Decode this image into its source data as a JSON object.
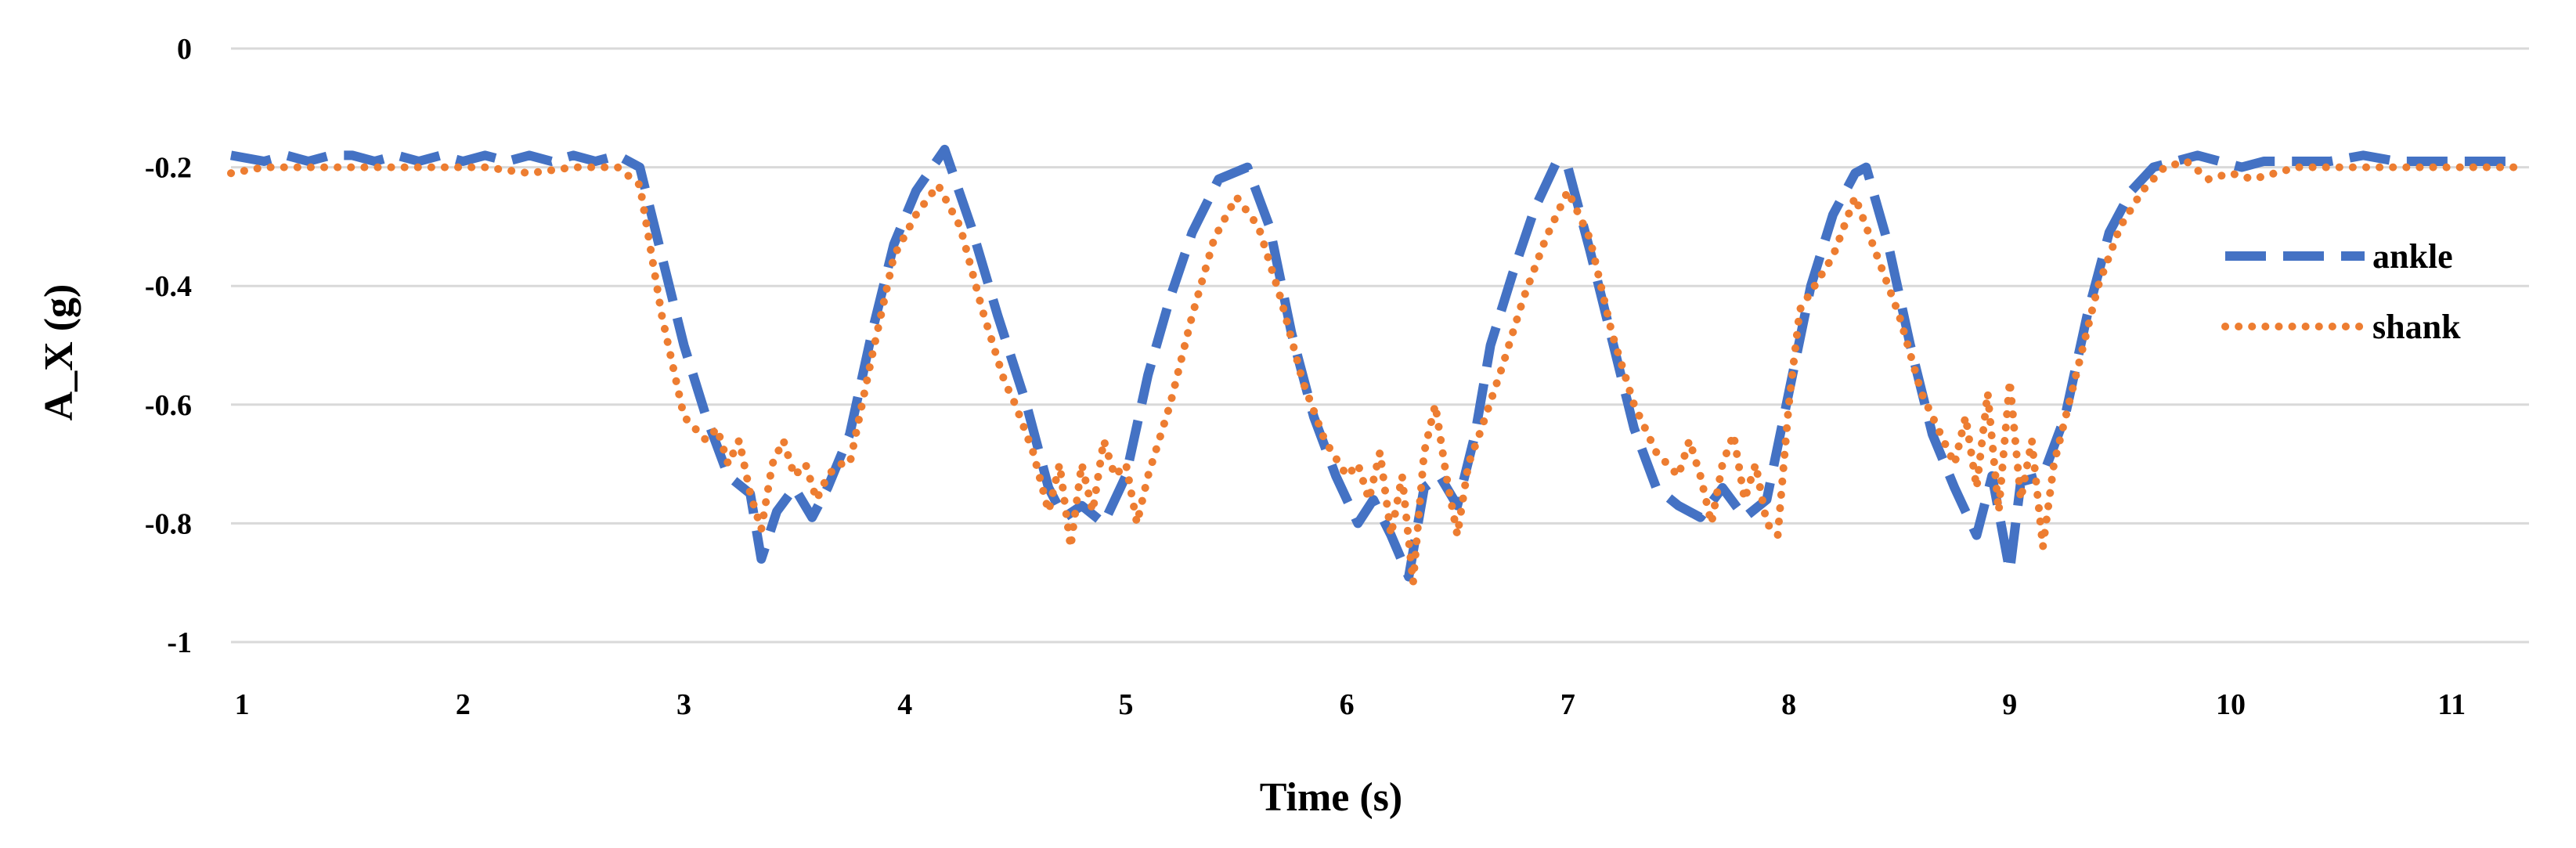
{
  "chart_data": {
    "type": "line",
    "title": "",
    "xlabel": "Time (s)",
    "ylabel": "A_X (g)",
    "xlim": [
      0.95,
      11.35
    ],
    "ylim": [
      -1,
      0
    ],
    "x_ticks": [
      1,
      2,
      3,
      4,
      5,
      6,
      7,
      8,
      9,
      10,
      11
    ],
    "x_tick_labels": [
      "1",
      "2",
      "3",
      "4",
      "5",
      "6",
      "7",
      "8",
      "9",
      "10",
      "11"
    ],
    "y_ticks": [
      0,
      -0.2,
      -0.4,
      -0.6,
      -0.8,
      -1
    ],
    "y_tick_labels": [
      "0",
      "-0.2",
      "-0.4",
      "-0.6",
      "-0.8",
      "-1"
    ],
    "grid": "horizontal",
    "legend_position": "right",
    "series": [
      {
        "name": "ankle",
        "color": "#4472C4",
        "style": "dashed",
        "x": [
          0.95,
          1.1,
          1.2,
          1.3,
          1.4,
          1.5,
          1.6,
          1.7,
          1.8,
          1.9,
          2.0,
          2.1,
          2.2,
          2.3,
          2.4,
          2.5,
          2.6,
          2.7,
          2.8,
          2.9,
          3.0,
          3.1,
          3.2,
          3.3,
          3.35,
          3.42,
          3.5,
          3.58,
          3.65,
          3.75,
          3.85,
          3.95,
          4.05,
          4.18,
          4.3,
          4.42,
          4.55,
          4.65,
          4.72,
          4.8,
          4.9,
          5.0,
          5.1,
          5.2,
          5.3,
          5.42,
          5.55,
          5.65,
          5.75,
          5.85,
          5.95,
          6.05,
          6.12,
          6.2,
          6.28,
          6.35,
          6.42,
          6.5,
          6.58,
          6.65,
          6.75,
          6.85,
          6.95,
          7.0,
          7.1,
          7.2,
          7.3,
          7.4,
          7.5,
          7.6,
          7.7,
          7.8,
          7.9,
          8.0,
          8.1,
          8.2,
          8.3,
          8.35,
          8.45,
          8.55,
          8.65,
          8.75,
          8.85,
          8.92,
          9.0,
          9.05,
          9.15,
          9.25,
          9.35,
          9.45,
          9.55,
          9.65,
          9.75,
          9.85,
          9.95,
          10.05,
          10.15,
          10.25,
          10.35,
          10.45,
          10.6,
          10.75,
          10.9,
          11.05,
          11.2,
          11.3
        ],
        "y": [
          -0.18,
          -0.19,
          -0.18,
          -0.19,
          -0.18,
          -0.18,
          -0.19,
          -0.18,
          -0.19,
          -0.18,
          -0.19,
          -0.18,
          -0.19,
          -0.18,
          -0.19,
          -0.18,
          -0.19,
          -0.18,
          -0.2,
          -0.35,
          -0.5,
          -0.62,
          -0.72,
          -0.75,
          -0.86,
          -0.78,
          -0.74,
          -0.79,
          -0.74,
          -0.65,
          -0.48,
          -0.33,
          -0.24,
          -0.17,
          -0.3,
          -0.45,
          -0.6,
          -0.74,
          -0.79,
          -0.77,
          -0.8,
          -0.72,
          -0.55,
          -0.42,
          -0.31,
          -0.22,
          -0.2,
          -0.3,
          -0.48,
          -0.62,
          -0.72,
          -0.8,
          -0.76,
          -0.82,
          -0.89,
          -0.74,
          -0.72,
          -0.77,
          -0.65,
          -0.5,
          -0.38,
          -0.27,
          -0.19,
          -0.2,
          -0.34,
          -0.49,
          -0.64,
          -0.74,
          -0.77,
          -0.79,
          -0.74,
          -0.79,
          -0.76,
          -0.58,
          -0.4,
          -0.28,
          -0.21,
          -0.2,
          -0.33,
          -0.5,
          -0.65,
          -0.74,
          -0.82,
          -0.72,
          -0.88,
          -0.73,
          -0.72,
          -0.62,
          -0.45,
          -0.31,
          -0.24,
          -0.2,
          -0.19,
          -0.18,
          -0.19,
          -0.2,
          -0.19,
          -0.19,
          -0.19,
          -0.19,
          -0.18,
          -0.19,
          -0.19,
          -0.19,
          -0.19,
          -0.19
        ]
      },
      {
        "name": "shank",
        "color": "#ED7D31",
        "style": "dotted",
        "x": [
          0.95,
          1.1,
          1.3,
          1.5,
          1.7,
          1.9,
          2.1,
          2.3,
          2.5,
          2.7,
          2.8,
          2.9,
          3.0,
          3.05,
          3.1,
          3.15,
          3.2,
          3.25,
          3.3,
          3.35,
          3.4,
          3.45,
          3.5,
          3.55,
          3.6,
          3.65,
          3.7,
          3.75,
          3.85,
          3.95,
          4.05,
          4.15,
          4.25,
          4.35,
          4.45,
          4.5,
          4.58,
          4.65,
          4.7,
          4.75,
          4.8,
          4.85,
          4.9,
          4.95,
          5.0,
          5.05,
          5.1,
          5.2,
          5.3,
          5.4,
          5.5,
          5.6,
          5.7,
          5.8,
          5.9,
          6.0,
          6.05,
          6.1,
          6.15,
          6.2,
          6.25,
          6.3,
          6.35,
          6.4,
          6.45,
          6.5,
          6.55,
          6.6,
          6.7,
          6.8,
          6.9,
          6.95,
          7.0,
          7.1,
          7.2,
          7.3,
          7.4,
          7.5,
          7.55,
          7.6,
          7.65,
          7.7,
          7.75,
          7.8,
          7.85,
          7.9,
          7.95,
          8.0,
          8.05,
          8.1,
          8.2,
          8.3,
          8.4,
          8.5,
          8.6,
          8.7,
          8.75,
          8.8,
          8.85,
          8.9,
          8.95,
          9.0,
          9.05,
          9.1,
          9.15,
          9.2,
          9.3,
          9.4,
          9.5,
          9.6,
          9.7,
          9.8,
          9.9,
          10.0,
          10.1,
          10.2,
          10.3,
          10.5,
          10.7,
          10.9,
          11.1,
          11.3
        ],
        "y": [
          -0.21,
          -0.2,
          -0.2,
          -0.2,
          -0.2,
          -0.2,
          -0.2,
          -0.21,
          -0.2,
          -0.2,
          -0.23,
          -0.45,
          -0.62,
          -0.64,
          -0.66,
          -0.64,
          -0.7,
          -0.66,
          -0.75,
          -0.81,
          -0.7,
          -0.66,
          -0.72,
          -0.7,
          -0.76,
          -0.72,
          -0.7,
          -0.7,
          -0.52,
          -0.35,
          -0.28,
          -0.23,
          -0.3,
          -0.44,
          -0.56,
          -0.6,
          -0.68,
          -0.78,
          -0.7,
          -0.84,
          -0.7,
          -0.78,
          -0.66,
          -0.72,
          -0.7,
          -0.8,
          -0.72,
          -0.6,
          -0.45,
          -0.32,
          -0.25,
          -0.3,
          -0.42,
          -0.56,
          -0.66,
          -0.72,
          -0.7,
          -0.76,
          -0.68,
          -0.82,
          -0.72,
          -0.9,
          -0.68,
          -0.6,
          -0.72,
          -0.82,
          -0.7,
          -0.65,
          -0.54,
          -0.42,
          -0.32,
          -0.28,
          -0.24,
          -0.32,
          -0.48,
          -0.6,
          -0.68,
          -0.72,
          -0.66,
          -0.72,
          -0.8,
          -0.7,
          -0.65,
          -0.76,
          -0.7,
          -0.8,
          -0.82,
          -0.6,
          -0.44,
          -0.41,
          -0.35,
          -0.25,
          -0.35,
          -0.45,
          -0.58,
          -0.66,
          -0.7,
          -0.62,
          -0.74,
          -0.58,
          -0.78,
          -0.56,
          -0.76,
          -0.66,
          -0.84,
          -0.7,
          -0.55,
          -0.4,
          -0.3,
          -0.24,
          -0.2,
          -0.19,
          -0.22,
          -0.21,
          -0.22,
          -0.21,
          -0.2,
          -0.2,
          -0.2,
          -0.2,
          -0.2,
          -0.2
        ]
      }
    ]
  }
}
